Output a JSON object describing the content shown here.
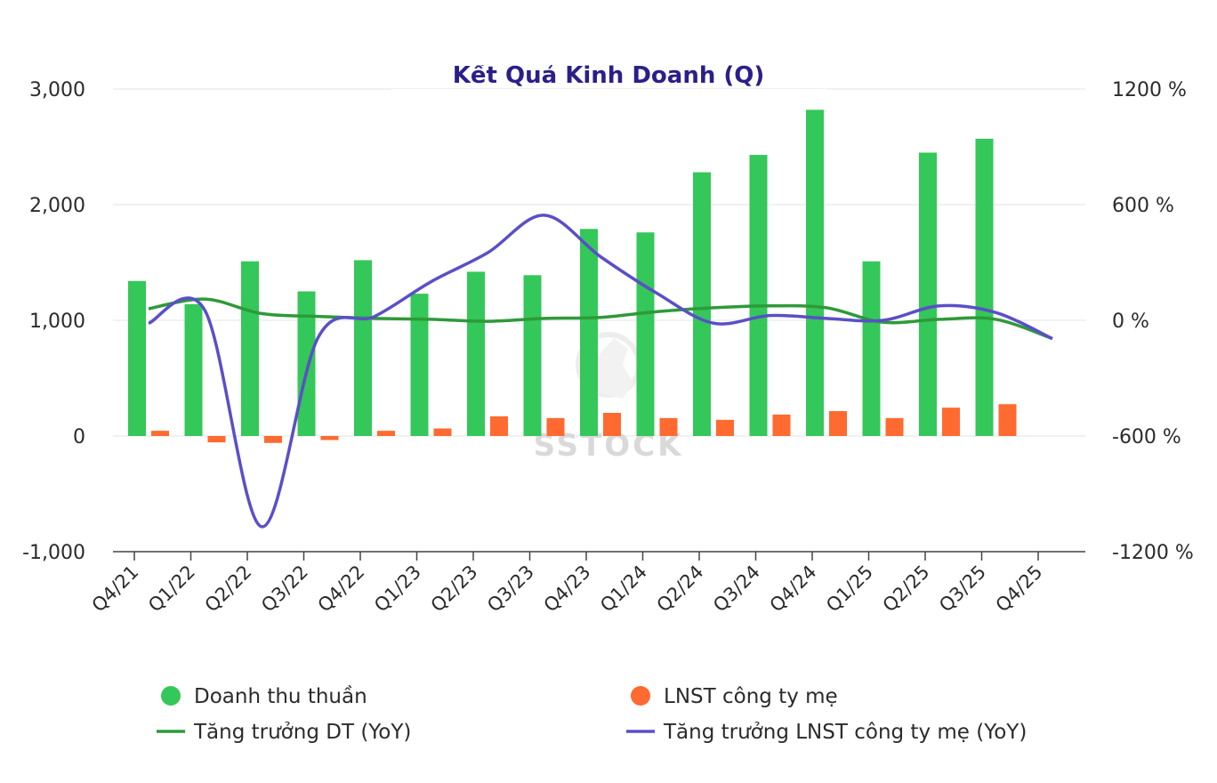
{
  "chart_data": {
    "type": "bar",
    "title": "Kết Quả Kinh Doanh (Q)",
    "watermark": "SSTOCK",
    "categories": [
      "Q4/21",
      "Q1/22",
      "Q2/22",
      "Q3/22",
      "Q4/22",
      "Q1/23",
      "Q2/23",
      "Q3/23",
      "Q4/23",
      "Q1/24",
      "Q2/24",
      "Q3/24",
      "Q4/24",
      "Q1/25",
      "Q2/25",
      "Q3/25",
      "Q4/25"
    ],
    "y_left": {
      "ticks": [
        3000,
        2000,
        1000,
        0,
        -1000
      ],
      "tick_labels": [
        "3,000",
        "2,000",
        "1,000",
        "0",
        "-1,000"
      ],
      "ylim": [
        -1000,
        3000
      ]
    },
    "y_right": {
      "ticks": [
        1200,
        600,
        0,
        -600,
        -1200
      ],
      "tick_labels": [
        "1200 %",
        "600 %",
        "0 %",
        "-600 %",
        "-1200 %"
      ],
      "ylim": [
        -1200,
        1200
      ]
    },
    "grid": true,
    "legend_position": "bottom",
    "series": [
      {
        "name": "Doanh thu thuần",
        "type": "bar",
        "axis": "left",
        "color": "#34c759",
        "values": [
          1340,
          1140,
          1510,
          1250,
          1520,
          1230,
          1420,
          1390,
          1790,
          1760,
          2280,
          2430,
          2820,
          1510,
          2450,
          2570,
          null
        ]
      },
      {
        "name": "LNST công ty mẹ",
        "type": "bar",
        "axis": "left",
        "color": "#ff6a30",
        "values": [
          45,
          -55,
          -60,
          -35,
          45,
          65,
          170,
          155,
          200,
          155,
          140,
          185,
          215,
          155,
          245,
          275,
          null
        ]
      },
      {
        "name": "Tăng trưởng DT (YoY)",
        "type": "line",
        "axis": "right",
        "color": "#2e9a38",
        "values": [
          60,
          110,
          35,
          20,
          10,
          5,
          -5,
          10,
          15,
          45,
          65,
          75,
          65,
          -10,
          5,
          5,
          -95
        ]
      },
      {
        "name": "Tăng trưởng LNST công ty mẹ (YoY)",
        "type": "line",
        "axis": "right",
        "color": "#5a4fc8",
        "values": [
          -15,
          50,
          -1070,
          -90,
          20,
          200,
          350,
          545,
          330,
          140,
          -15,
          25,
          10,
          0,
          75,
          40,
          -95
        ]
      }
    ]
  }
}
